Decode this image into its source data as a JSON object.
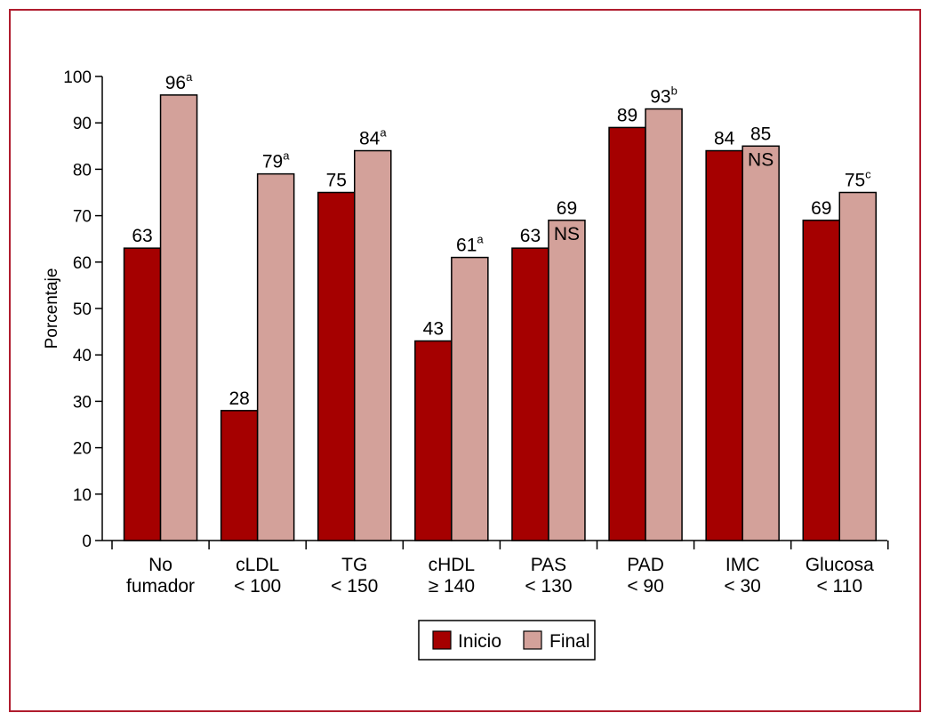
{
  "chart_data": {
    "type": "bar",
    "ylabel": "Porcentaje",
    "ylim": [
      0,
      100
    ],
    "yticks": [
      0,
      10,
      20,
      30,
      40,
      50,
      60,
      70,
      80,
      90,
      100
    ],
    "categories": [
      [
        "No",
        "fumador"
      ],
      [
        "cLDL",
        "< 100"
      ],
      [
        "TG",
        "< 150"
      ],
      [
        "cHDL",
        "≥ 140"
      ],
      [
        "PAS",
        "< 130"
      ],
      [
        "PAD",
        "< 90"
      ],
      [
        "IMC",
        "< 30"
      ],
      [
        "Glucosa",
        "< 110"
      ]
    ],
    "series": [
      {
        "name": "Inicio",
        "color": "#a50000",
        "values": [
          63,
          28,
          75,
          43,
          63,
          89,
          84,
          69
        ],
        "labels": [
          "63",
          "28",
          "75",
          "43",
          "63",
          "89",
          "84",
          "69"
        ],
        "superscripts": [
          "",
          "",
          "",
          "",
          "",
          "",
          "",
          ""
        ]
      },
      {
        "name": "Final",
        "color": "#d3a19a",
        "values": [
          96,
          79,
          84,
          61,
          69,
          93,
          85,
          75
        ],
        "labels": [
          "96",
          "79",
          "84",
          "61",
          "69",
          "93",
          "85",
          "75"
        ],
        "superscripts": [
          "a",
          "a",
          "a",
          "a",
          "",
          "b",
          "",
          "c"
        ],
        "inner_notes": [
          "",
          "",
          "",
          "",
          "NS",
          "",
          "NS",
          ""
        ]
      }
    ],
    "legend_position": "bottom-center",
    "grid": false
  }
}
